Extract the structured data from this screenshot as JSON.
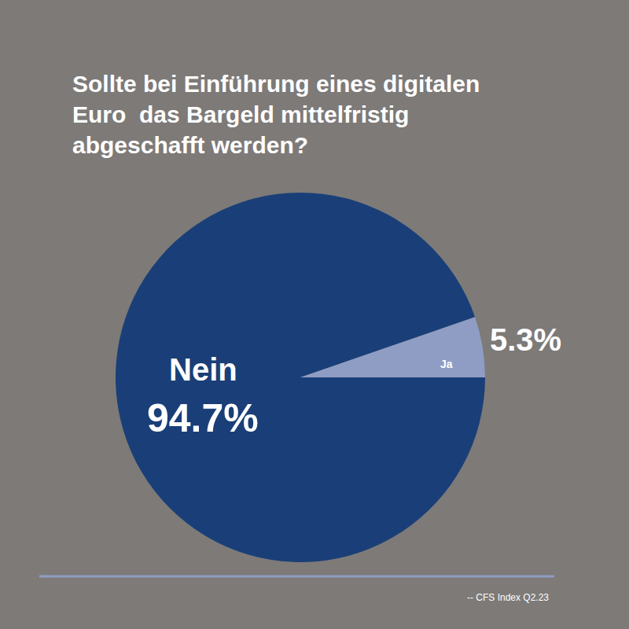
{
  "chart_data": {
    "type": "pie",
    "title": "Sollte bei Einführung eines digitalen Euro  das Bargeld mittelfristig abgeschafft werden?",
    "categories": [
      "Nein",
      "Ja"
    ],
    "values": [
      94.7,
      5.3
    ],
    "value_labels": [
      "94.7%",
      "5.3%"
    ],
    "colors": [
      "#1a3f78",
      "#8f9dc4"
    ],
    "data_labels": true,
    "source": "-- CFS Index Q2.23"
  }
}
